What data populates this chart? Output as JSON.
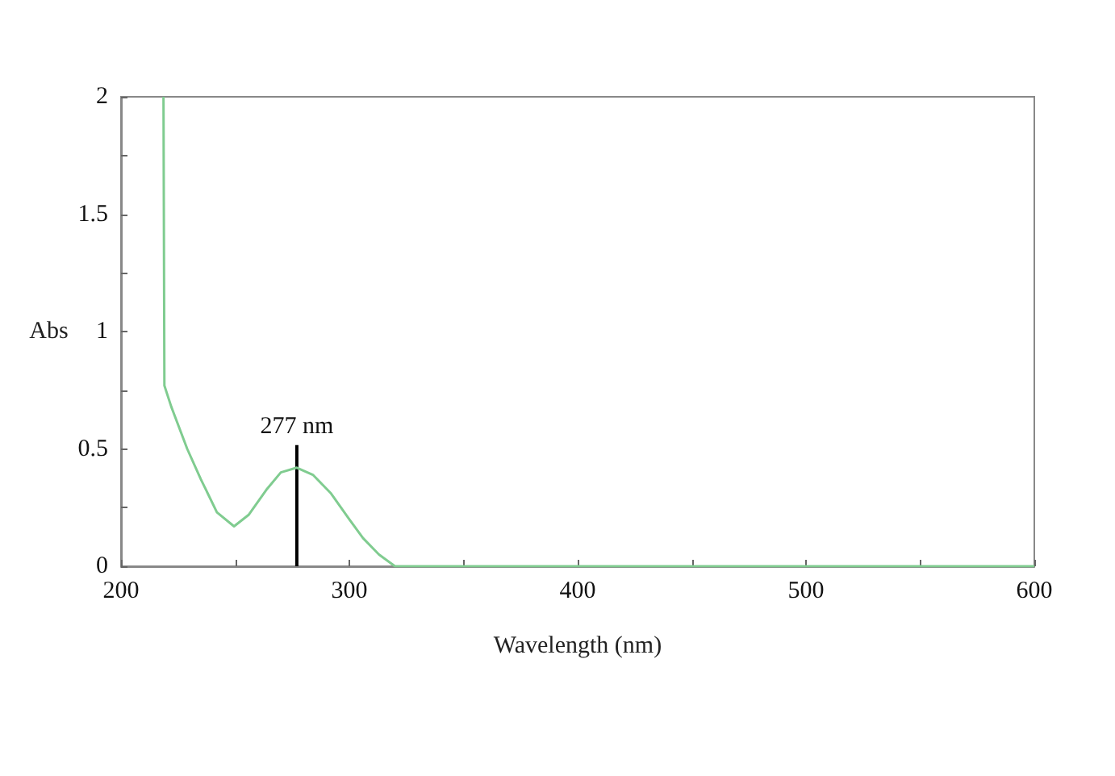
{
  "chart_data": {
    "type": "line",
    "xlabel": "Wavelength (nm)",
    "ylabel": "Abs",
    "x": [
      218.6,
      219,
      222,
      229,
      235,
      242,
      249.5,
      256,
      264,
      270,
      277,
      284,
      292,
      300,
      306,
      313,
      320,
      400,
      500,
      600
    ],
    "series": [
      {
        "color": "#80cc90",
        "values": [
          2,
          0.77,
          0.68,
          0.5,
          0.37,
          0.23,
          0.17,
          0.22,
          0.33,
          0.4,
          0.42,
          0.39,
          0.31,
          0.2,
          0.12,
          0.05,
          0,
          0,
          0,
          0
        ]
      }
    ],
    "xlim": [
      200,
      600
    ],
    "xticks": [
      200,
      {
        "value": 250,
        "label": null
      },
      300,
      {
        "value": 350,
        "label": null
      },
      400,
      {
        "value": 450,
        "label": null
      },
      500,
      {
        "value": 550,
        "label": null
      },
      600
    ],
    "ylim": [
      0,
      2
    ],
    "yticks": [
      0,
      {
        "value": 0.25,
        "label": null
      },
      0.5,
      {
        "value": 0.75,
        "label": null
      },
      1,
      {
        "value": 1.25,
        "label": null
      },
      1.5,
      {
        "value": 1.75,
        "label": null
      },
      2
    ],
    "annotations": [
      {
        "text": "277 nm",
        "x": 277,
        "y": 0.42
      }
    ],
    "grid": false,
    "marker": "none",
    "line_style": "solid"
  }
}
